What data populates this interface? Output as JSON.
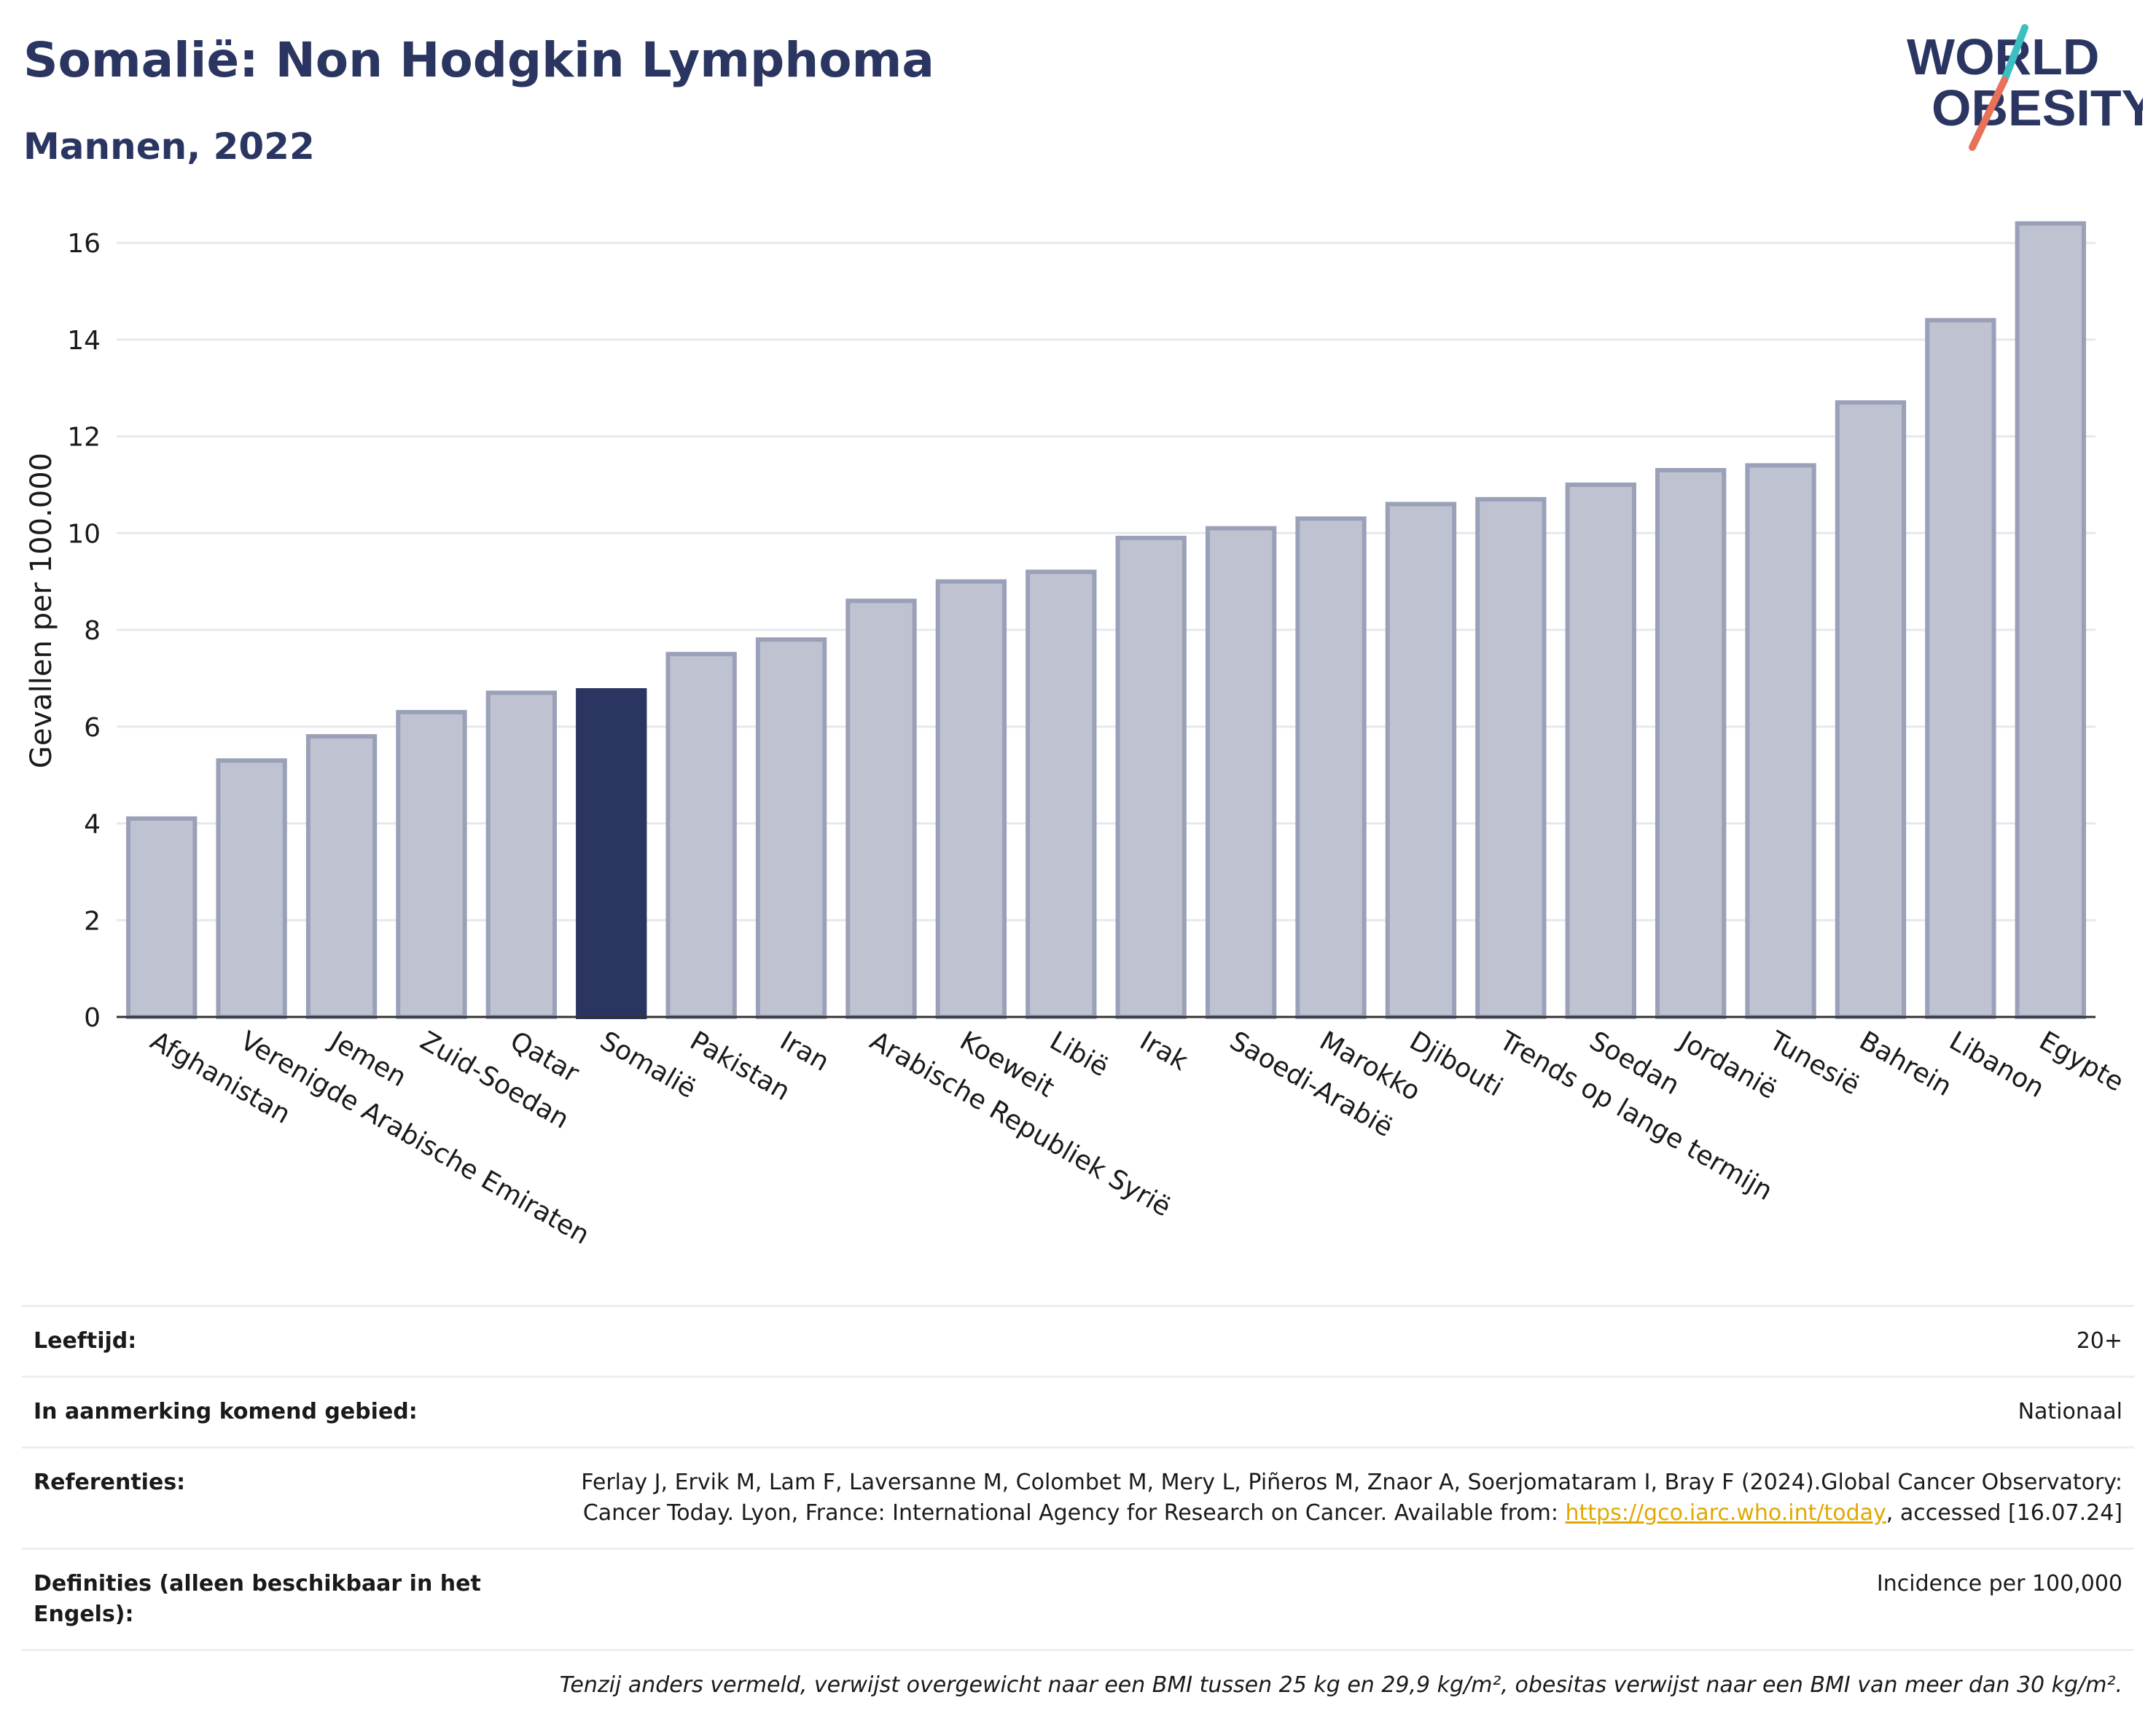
{
  "header": {
    "title": "Somalië: Non Hodgkin Lymphoma",
    "subtitle": "Mannen, 2022",
    "logo_line1": "WORLD",
    "logo_line2": "OBESITY"
  },
  "colors": {
    "bar_default": "#bfc3d1",
    "bar_stroke": "#9aa0b8",
    "bar_highlight": "#2b3561",
    "title": "#2b3561",
    "grid": "#e6e8ee",
    "logo_teal": "#3bbfc0",
    "logo_coral": "#e8715a"
  },
  "chart_data": {
    "type": "bar",
    "ylabel": "Gevallen per 100.000",
    "xlabel": "",
    "ylim": [
      0,
      16.8
    ],
    "yticks": [
      0,
      2,
      4,
      6,
      8,
      10,
      12,
      14,
      16
    ],
    "grid": true,
    "highlight": "Somalië",
    "categories": [
      "Afghanistan",
      "Verenigde Arabische Emiraten",
      "Jemen",
      "Zuid-Soedan",
      "Qatar",
      "Somalië",
      "Pakistan",
      "Iran",
      "Arabische Republiek Syrië",
      "Koeweit",
      "Libië",
      "Irak",
      "Saoedi-Arabië",
      "Marokko",
      "Djibouti",
      "Trends op lange termijn",
      "Soedan",
      "Jordanië",
      "Tunesië",
      "Bahrein",
      "Libanon",
      "Egypte"
    ],
    "values": [
      4.1,
      5.3,
      5.8,
      6.3,
      6.7,
      6.75,
      7.5,
      7.8,
      8.6,
      9.0,
      9.2,
      9.9,
      10.1,
      10.3,
      10.6,
      10.7,
      11.0,
      11.3,
      11.4,
      12.7,
      14.4,
      16.4
    ]
  },
  "meta": {
    "age_label": "Leeftijd:",
    "age_value": "20+",
    "area_label": "In aanmerking komend gebied:",
    "area_value": "Nationaal",
    "ref_label": "Referenties:",
    "ref_text_1": "Ferlay J, Ervik M, Lam F, Laversanne M, Colombet M, Mery L, Piñeros M, Znaor A, Soerjomataram I, Bray F (2024).Global Cancer Observatory: Cancer Today. Lyon, France: International Agency for Research on Cancer. Available from: ",
    "ref_link": "https://gco.iarc.who.int/today",
    "ref_text_2": ", accessed [16.07.24]",
    "def_label": "Definities (alleen beschikbaar in het Engels):",
    "def_value": "Incidence per 100,000",
    "note": "Tenzij anders vermeld, verwijst overgewicht naar een BMI tussen 25 kg en 29,9 kg/m², obesitas verwijst naar een BMI van meer dan 30 kg/m²."
  }
}
